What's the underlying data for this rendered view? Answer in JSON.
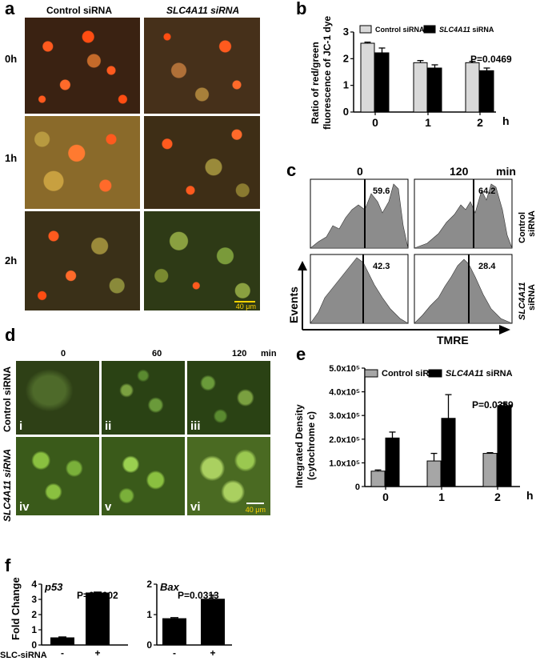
{
  "panels": {
    "a": {
      "label": "a",
      "col_headers": [
        "Control siRNA",
        "SLC4A11 siRNA"
      ],
      "row_labels": [
        "0h",
        "1h",
        "2h"
      ],
      "scale_bar": "40 μm"
    },
    "b": {
      "label": "b",
      "ylabel_line1": "Ratio of red/green",
      "ylabel_line2": "fluorescence of JC-1 dye",
      "xunit": "h",
      "pvalue": "P=0.0469"
    },
    "c": {
      "label": "c",
      "col_headers": [
        "0",
        "120"
      ],
      "col_unit": "min",
      "row_labels": [
        [
          "Control",
          "siRNA"
        ],
        [
          "SLC4A11",
          "siRNA"
        ]
      ],
      "percents": [
        "59.6",
        "64.2",
        "42.3",
        "28.4"
      ],
      "y_axis": "Events",
      "x_axis": "TMRE"
    },
    "d": {
      "label": "d",
      "col_headers": [
        "0",
        "60",
        "120"
      ],
      "col_unit": "min",
      "row_labels": [
        "Control siRNA",
        "SLC4A11 siRNA"
      ],
      "roman": [
        "i",
        "ii",
        "iii",
        "iv",
        "v",
        "vi"
      ],
      "scale_bar": "40 μm"
    },
    "e": {
      "label": "e",
      "ylabel_line1": "Integrated Density",
      "ylabel_line2": "(cytochrome c)",
      "xunit": "h",
      "pvalue": "P=0.0359"
    },
    "f": {
      "label": "f",
      "ylabel": "Fold Change",
      "xaxis_title": "SLC-siRNA"
    }
  },
  "chart_data": [
    {
      "id": "b",
      "type": "bar",
      "categories": [
        "0",
        "1",
        "2"
      ],
      "series": [
        {
          "name": "Control siRNA",
          "values": [
            2.58,
            1.85,
            1.85
          ],
          "errors": [
            0.04,
            0.08,
            0.05
          ],
          "color": "#d9d9d9"
        },
        {
          "name": "SLC4A11 siRNA",
          "values": [
            2.22,
            1.65,
            1.55
          ],
          "errors": [
            0.18,
            0.12,
            0.1
          ],
          "color": "#000000"
        }
      ],
      "yticks": [
        "0",
        "1",
        "2",
        "3"
      ],
      "ylim": [
        0,
        3
      ],
      "legend": "top-right"
    },
    {
      "id": "e",
      "type": "bar",
      "categories": [
        "0",
        "1",
        "2"
      ],
      "series": [
        {
          "name": "Control siRNA",
          "values": [
            65000,
            108000,
            140000
          ],
          "errors": [
            5000,
            32000,
            3000
          ],
          "color": "#a6a6a6"
        },
        {
          "name": "SLC4A11 siRNA",
          "values": [
            205000,
            288000,
            342000
          ],
          "errors": [
            25000,
            100000,
            10000
          ],
          "color": "#000000"
        }
      ],
      "yticks": [
        "0",
        "1.0x10⁵",
        "2.0x10⁵",
        "3.0x10⁵",
        "4.0x10⁵",
        "5.0x10⁵"
      ],
      "ylim": [
        0,
        500000
      ],
      "legend": "top"
    },
    {
      "id": "f1",
      "type": "bar",
      "title": "p53",
      "categories": [
        "-",
        "+"
      ],
      "values": [
        0.5,
        3.45
      ],
      "errors": [
        0.03,
        0.03
      ],
      "yticks": [
        "0",
        "1",
        "2",
        "3",
        "4"
      ],
      "ylim": [
        0,
        4
      ],
      "pvalue": "P=0.0002"
    },
    {
      "id": "f2",
      "type": "bar",
      "title": "Bax",
      "categories": [
        "-",
        "+"
      ],
      "values": [
        0.88,
        1.52
      ],
      "errors": [
        0.02,
        0.12
      ],
      "yticks": [
        "0",
        "1",
        "2"
      ],
      "ylim": [
        0,
        2
      ],
      "pvalue": "P=0.0313"
    }
  ]
}
